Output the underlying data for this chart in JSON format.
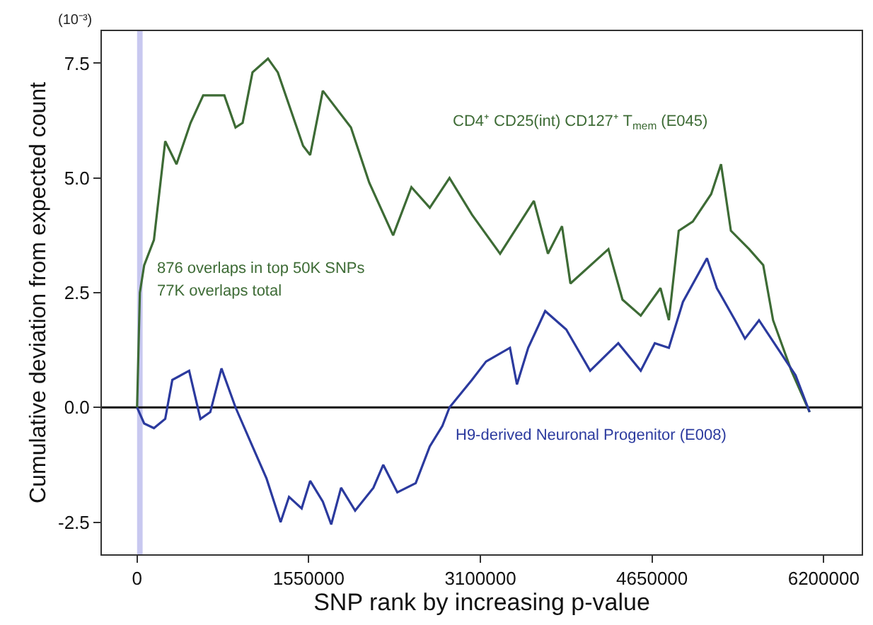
{
  "chart_data": {
    "type": "line",
    "xlabel": "SNP rank by increasing p-value",
    "ylabel": "Cumulative deviation from expected count",
    "xlim": [
      -318000,
      6543000
    ],
    "xticks": [
      0,
      1550000,
      3100000,
      4650000,
      6200000
    ],
    "ylim": [
      -3.2,
      8.2
    ],
    "yticks": [
      {
        "value": -2.5,
        "label": "-2.5"
      },
      {
        "value": 0,
        "label": "0.0"
      },
      {
        "value": 2.5,
        "label": "2.5"
      },
      {
        "value": 5,
        "label": "5.0"
      },
      {
        "value": 7.5,
        "label": "7.5"
      }
    ],
    "grid": false,
    "legend": false,
    "marker": "none",
    "line_style": "solid",
    "ref_lines": [
      {
        "axis": "y",
        "value": 0,
        "color": "#111111"
      }
    ],
    "bands": [
      {
        "axis": "x",
        "from": 0,
        "to": 50000,
        "color": "#c8c8f0"
      }
    ],
    "annotations": [
      "(10⁻³)",
      "876 overlaps in top 50K SNPs",
      "77K overlaps total"
    ],
    "series": [
      {
        "name": "CD4⁺ CD25(int) CD127⁺ T$_{mem}$ (E045)",
        "color": "#3d6b35",
        "x": [
          0,
          25000,
          64000,
          152000,
          254000,
          356000,
          483000,
          597000,
          788000,
          889000,
          953000,
          1042000,
          1182000,
          1271000,
          1499000,
          1563000,
          1677000,
          1931000,
          2096000,
          2312000,
          2477000,
          2643000,
          2821000,
          3024000,
          3278000,
          3583000,
          3710000,
          3837000,
          3913000,
          4256000,
          4383000,
          4548000,
          4726000,
          4802000,
          4891000,
          5018000,
          5184000,
          5273000,
          5362000,
          5527000,
          5654000,
          5743000,
          5908000,
          6073000
        ],
        "values": [
          0,
          2.5,
          3.1,
          3.65,
          5.8,
          5.3,
          6.2,
          6.8,
          6.8,
          6.1,
          6.2,
          7.3,
          7.6,
          7.3,
          5.7,
          5.5,
          6.9,
          6.1,
          4.9,
          3.75,
          4.8,
          4.35,
          5.0,
          4.2,
          3.35,
          4.5,
          3.35,
          3.95,
          2.7,
          3.45,
          2.35,
          2.0,
          2.6,
          1.9,
          3.85,
          4.05,
          4.65,
          5.3,
          3.85,
          3.45,
          3.1,
          1.9,
          0.8,
          -0.1
        ]
      },
      {
        "name": "H9-derived Neuronal Progenitor (E008)",
        "color": "#2b3a9e",
        "x": [
          0,
          64000,
          152000,
          254000,
          318000,
          470000,
          572000,
          661000,
          762000,
          889000,
          1042000,
          1169000,
          1296000,
          1372000,
          1486000,
          1563000,
          1677000,
          1753000,
          1842000,
          1969000,
          2134000,
          2223000,
          2350000,
          2516000,
          2643000,
          2757000,
          2821000,
          3024000,
          3151000,
          3367000,
          3430000,
          3532000,
          3685000,
          3875000,
          4091000,
          4345000,
          4548000,
          4675000,
          4802000,
          4929000,
          5146000,
          5235000,
          5400000,
          5489000,
          5616000,
          5781000,
          5946000,
          6073000
        ],
        "values": [
          0,
          -0.35,
          -0.45,
          -0.25,
          0.6,
          0.8,
          -0.25,
          -0.1,
          0.85,
          0,
          -0.85,
          -1.55,
          -2.5,
          -1.95,
          -2.2,
          -1.6,
          -2.05,
          -2.55,
          -1.75,
          -2.25,
          -1.75,
          -1.25,
          -1.85,
          -1.65,
          -0.85,
          -0.4,
          0,
          0.6,
          1.0,
          1.3,
          0.5,
          1.3,
          2.1,
          1.7,
          0.8,
          1.4,
          0.8,
          1.4,
          1.3,
          2.3,
          3.25,
          2.6,
          1.9,
          1.5,
          1.9,
          1.3,
          0.7,
          -0.1
        ]
      }
    ]
  }
}
